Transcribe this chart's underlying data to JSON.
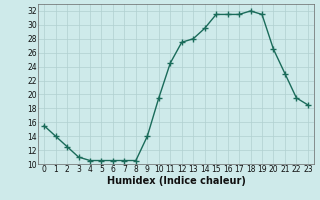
{
  "x": [
    0,
    1,
    2,
    3,
    4,
    5,
    6,
    7,
    8,
    9,
    10,
    11,
    12,
    13,
    14,
    15,
    16,
    17,
    18,
    19,
    20,
    21,
    22,
    23
  ],
  "y": [
    15.5,
    14.0,
    12.5,
    11.0,
    10.5,
    10.5,
    10.5,
    10.5,
    10.5,
    14.0,
    19.5,
    24.5,
    27.5,
    28.0,
    29.5,
    31.5,
    31.5,
    31.5,
    32.0,
    31.5,
    26.5,
    23.0,
    19.5,
    18.5
  ],
  "line_color": "#1a6b5a",
  "marker": "+",
  "marker_size": 4,
  "marker_lw": 1.0,
  "line_width": 1.0,
  "bg_color": "#ceeaea",
  "grid_color": "#b0d0d0",
  "xlabel": "Humidex (Indice chaleur)",
  "xlim": [
    -0.5,
    23.5
  ],
  "ylim": [
    10,
    33
  ],
  "yticks": [
    10,
    12,
    14,
    16,
    18,
    20,
    22,
    24,
    26,
    28,
    30,
    32
  ],
  "xticks": [
    0,
    1,
    2,
    3,
    4,
    5,
    6,
    7,
    8,
    9,
    10,
    11,
    12,
    13,
    14,
    15,
    16,
    17,
    18,
    19,
    20,
    21,
    22,
    23
  ],
  "tick_fontsize": 5.5,
  "xlabel_fontsize": 7.0
}
